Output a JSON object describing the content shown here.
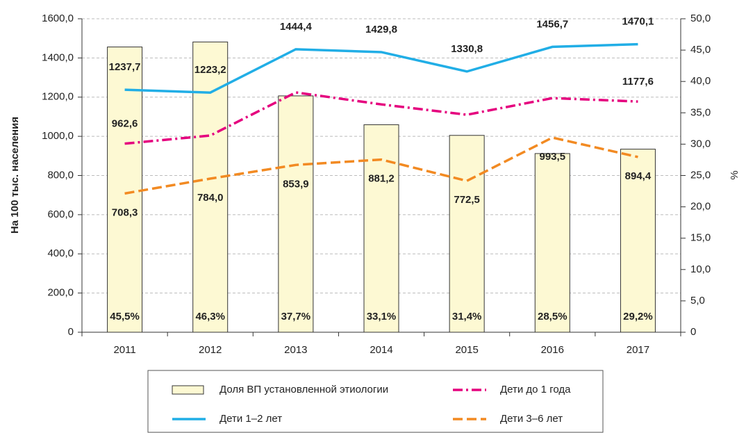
{
  "chart_data": {
    "type": "bar-line",
    "y_label": "На 100 тыс. населения",
    "y2_label": "%",
    "categories": [
      "2011",
      "2012",
      "2013",
      "2014",
      "2015",
      "2016",
      "2017"
    ],
    "ylim": [
      0,
      1600
    ],
    "yticks": [
      0,
      {
        "value": 200,
        "label": "200,0"
      },
      {
        "value": 400,
        "label": "400,0"
      },
      {
        "value": 600,
        "label": "600,0"
      },
      {
        "value": 800,
        "label": "800,0"
      },
      {
        "value": 1000,
        "label": "1000,0"
      },
      {
        "value": 1200,
        "label": "1200,0"
      },
      {
        "value": 1400,
        "label": "1400,0"
      },
      {
        "value": 1600,
        "label": "1600,0"
      }
    ],
    "y2lim": [
      0,
      50
    ],
    "y2ticks": [
      0,
      {
        "value": 5,
        "label": "5,0"
      },
      {
        "value": 10,
        "label": "10,0"
      },
      {
        "value": 15,
        "label": "15,0"
      },
      {
        "value": 20,
        "label": "20,0"
      },
      {
        "value": 25,
        "label": "25,0"
      },
      {
        "value": 30,
        "label": "30,0"
      },
      {
        "value": 35,
        "label": "35,0"
      },
      {
        "value": 40,
        "label": "40,0"
      },
      {
        "value": 45,
        "label": "45,0"
      },
      {
        "value": 50,
        "label": "50,0"
      }
    ],
    "grid": true,
    "series": [
      {
        "name": "Доля ВП установленной этиологии",
        "kind": "bar",
        "axis": "y2",
        "color": "#fdf9d3",
        "values": [
          45.5,
          46.3,
          37.7,
          33.1,
          31.4,
          28.5,
          29.2
        ],
        "value_labels": [
          "45,5%",
          "46,3%",
          "37,7%",
          "33,1%",
          "31,4%",
          "28,5%",
          "29,2%"
        ]
      },
      {
        "name": "Дети до 1 года",
        "kind": "line",
        "dash": "14 5 3 5",
        "color": "#e5007e",
        "values": [
          962.6,
          1004,
          1224,
          1163,
          1110,
          1195,
          1177.6
        ],
        "value_labels": [
          "962,6",
          null,
          null,
          null,
          null,
          null,
          "1177,6"
        ]
      },
      {
        "name": "Дети 1–2 лет",
        "kind": "line",
        "dash": "none",
        "color": "#21aee6",
        "values": [
          1237.7,
          1223.2,
          1444.4,
          1429.8,
          1330.8,
          1456.7,
          1470.1
        ],
        "value_labels": [
          "1237,7",
          "1223,2",
          "1444,4",
          "1429,8",
          "1330,8",
          "1456,7",
          "1470,1"
        ]
      },
      {
        "name": "Дети 3–6 лет",
        "kind": "line",
        "dash": "14 6",
        "color": "#f28a22",
        "values": [
          708.3,
          784.0,
          853.9,
          881.2,
          772.5,
          993.5,
          894.4
        ],
        "value_labels": [
          "708,3",
          "784,0",
          "853,9",
          "881,2",
          "772,5",
          "993,5",
          "894,4"
        ]
      }
    ]
  }
}
